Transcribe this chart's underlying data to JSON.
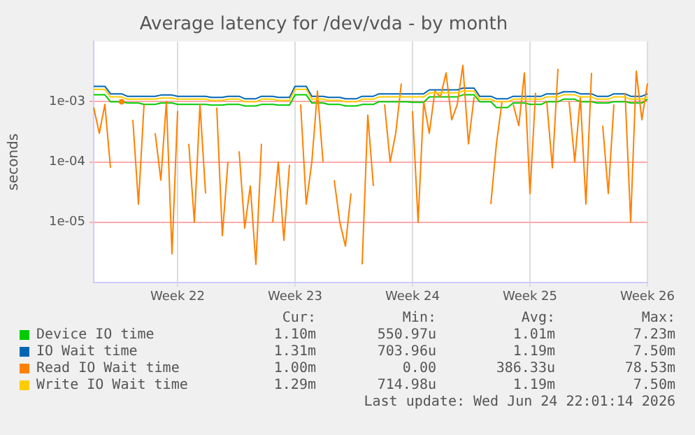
{
  "chart_data": {
    "type": "line",
    "title": "Average latency for /dev/vda - by month",
    "ylabel": "seconds",
    "log": "y",
    "grid": true,
    "legend": "bottom",
    "marker": "none",
    "line_style": "solid",
    "categories": [
      null,
      null,
      null,
      null,
      null,
      null,
      null,
      null,
      null,
      null,
      null,
      null,
      null,
      null,
      null,
      "Week 22",
      null,
      null,
      null,
      null,
      null,
      null,
      null,
      null,
      null,
      null,
      null,
      null,
      null,
      null,
      null,
      null,
      null,
      null,
      null,
      null,
      "Week 23",
      null,
      null,
      null,
      null,
      null,
      null,
      null,
      null,
      null,
      null,
      null,
      null,
      null,
      null,
      null,
      null,
      null,
      null,
      null,
      null,
      "Week 24",
      null,
      null,
      null,
      null,
      null,
      null,
      null,
      null,
      null,
      null,
      null,
      null,
      null,
      null,
      null,
      null,
      null,
      null,
      null,
      null,
      "Week 25",
      null,
      null,
      null,
      null,
      null,
      null,
      null,
      null,
      null,
      null,
      null,
      null,
      null,
      null,
      null,
      null,
      null,
      null,
      null,
      null,
      "Week 26"
    ],
    "ylim": [
      1e-06,
      0.01
    ],
    "yticks": [
      {
        "value": 1e-05,
        "label": "1e-05"
      },
      {
        "value": 0.0001,
        "label": "1e-04"
      },
      {
        "value": 0.001,
        "label": "1e-03"
      }
    ],
    "series": [
      {
        "name": "Device IO time",
        "color": "#00cc00",
        "values": [
          0.0013,
          0.0013,
          0.0013,
          0.001,
          0.001,
          0.001,
          0.00095,
          0.00095,
          0.00095,
          0.0009,
          0.0009,
          0.0009,
          0.00095,
          0.00095,
          0.00095,
          0.0009,
          0.0009,
          0.0009,
          0.0009,
          0.0009,
          0.0009,
          0.00088,
          0.00088,
          0.00088,
          0.0009,
          0.0009,
          0.0009,
          0.00085,
          0.00085,
          0.00085,
          0.0009,
          0.0009,
          0.0009,
          0.00088,
          0.00088,
          0.00088,
          0.0013,
          0.0013,
          0.0013,
          0.00095,
          0.00095,
          0.00095,
          0.0009,
          0.0009,
          0.0009,
          0.00085,
          0.00085,
          0.00085,
          0.0009,
          0.0009,
          0.0009,
          0.001,
          0.001,
          0.001,
          0.001,
          0.001,
          0.001,
          0.00098,
          0.00098,
          0.00098,
          0.0012,
          0.0012,
          0.0012,
          0.0012,
          0.0012,
          0.0012,
          0.0013,
          0.0013,
          0.0013,
          0.001,
          0.001,
          0.001,
          0.0008,
          0.0008,
          0.0008,
          0.00095,
          0.00095,
          0.00095,
          0.0009,
          0.0009,
          0.0009,
          0.001,
          0.001,
          0.001,
          0.0011,
          0.0011,
          0.0011,
          0.001,
          0.001,
          0.001,
          0.00095,
          0.00095,
          0.00095,
          0.001,
          0.001,
          0.001,
          0.00095,
          0.00095,
          0.00095,
          0.0011
        ]
      },
      {
        "name": "IO Wait time",
        "color": "#0066b3",
        "values": [
          0.0018,
          0.0018,
          0.0018,
          0.00135,
          0.00135,
          0.00135,
          0.00123,
          0.00123,
          0.00123,
          0.00123,
          0.00123,
          0.00123,
          0.00129,
          0.00129,
          0.00129,
          0.00123,
          0.00123,
          0.00123,
          0.00123,
          0.00123,
          0.00123,
          0.00118,
          0.00118,
          0.00118,
          0.00123,
          0.00123,
          0.00123,
          0.00112,
          0.00112,
          0.00112,
          0.00123,
          0.00123,
          0.00123,
          0.00118,
          0.00118,
          0.00118,
          0.0018,
          0.0018,
          0.0018,
          0.00123,
          0.00123,
          0.00123,
          0.00118,
          0.00118,
          0.00118,
          0.00112,
          0.00112,
          0.00112,
          0.00123,
          0.00123,
          0.00123,
          0.00135,
          0.00135,
          0.00135,
          0.00135,
          0.00135,
          0.00135,
          0.00135,
          0.00135,
          0.00135,
          0.00157,
          0.00157,
          0.00157,
          0.00157,
          0.00157,
          0.00157,
          0.00168,
          0.00168,
          0.00168,
          0.00123,
          0.00123,
          0.00123,
          0.00112,
          0.00112,
          0.00112,
          0.00123,
          0.00123,
          0.00123,
          0.00123,
          0.00123,
          0.00123,
          0.00135,
          0.00135,
          0.00135,
          0.00146,
          0.00146,
          0.00146,
          0.00135,
          0.00135,
          0.00135,
          0.00123,
          0.00123,
          0.00123,
          0.00135,
          0.00135,
          0.00135,
          0.00123,
          0.00123,
          0.00123,
          0.00135
        ]
      },
      {
        "name": "Read IO Wait time",
        "color": "#ff8000",
        "values": [
          0.0008,
          0.0003,
          0.0009,
          8e-05,
          null,
          0.001,
          null,
          0.0005,
          2e-05,
          0.0009,
          null,
          0.0003,
          5e-05,
          0.001,
          3e-06,
          0.0007,
          null,
          0.0002,
          1e-05,
          0.0009,
          3e-05,
          null,
          0.0008,
          6e-06,
          0.0001,
          null,
          0.00015,
          8e-06,
          4e-05,
          2e-06,
          0.0002,
          null,
          1e-05,
          0.0001,
          5e-06,
          9e-05,
          null,
          0.0009,
          2e-05,
          0.0001,
          0.0015,
          0.0001,
          null,
          5e-05,
          1e-05,
          4e-06,
          3e-05,
          null,
          2e-06,
          0.0006,
          4e-05,
          null,
          0.0009,
          0.0001,
          0.0003,
          0.002,
          null,
          0.0007,
          1e-05,
          0.001,
          0.0003,
          0.0015,
          0.0012,
          0.003,
          0.0005,
          0.0009,
          0.004,
          0.0002,
          0.0012,
          null,
          null,
          2e-05,
          0.0002,
          0.001,
          null,
          0.0009,
          0.0004,
          0.003,
          3e-05,
          0.0014,
          null,
          0.001,
          8e-05,
          0.0035,
          null,
          0.001,
          0.0001,
          0.0012,
          2e-05,
          0.003,
          null,
          0.0004,
          3e-05,
          0.0009,
          null,
          0.0014,
          1e-05,
          0.0032,
          0.0005,
          0.002
        ]
      },
      {
        "name": "Write IO Wait time",
        "color": "#ffcc00",
        "values": [
          0.0016,
          0.0016,
          0.0016,
          0.0012,
          0.0012,
          0.0012,
          0.0011,
          0.0011,
          0.0011,
          0.0011,
          0.0011,
          0.0011,
          0.00115,
          0.00115,
          0.00115,
          0.0011,
          0.0011,
          0.0011,
          0.0011,
          0.0011,
          0.0011,
          0.00105,
          0.00105,
          0.00105,
          0.0011,
          0.0011,
          0.0011,
          0.001,
          0.001,
          0.001,
          0.0011,
          0.0011,
          0.0011,
          0.00105,
          0.00105,
          0.00105,
          0.0016,
          0.0016,
          0.0016,
          0.0011,
          0.0011,
          0.0011,
          0.00105,
          0.00105,
          0.00105,
          0.001,
          0.001,
          0.001,
          0.0011,
          0.0011,
          0.0011,
          0.0012,
          0.0012,
          0.0012,
          0.0012,
          0.0012,
          0.0012,
          0.0012,
          0.0012,
          0.0012,
          0.0014,
          0.0014,
          0.0014,
          0.0014,
          0.0014,
          0.0014,
          0.0015,
          0.0015,
          0.0015,
          0.0011,
          0.0011,
          0.0011,
          0.001,
          0.001,
          0.001,
          0.0011,
          0.0011,
          0.0011,
          0.0011,
          0.0011,
          0.0011,
          0.0012,
          0.0012,
          0.0012,
          0.0013,
          0.0013,
          0.0013,
          0.0012,
          0.0012,
          0.0012,
          0.0011,
          0.0011,
          0.0011,
          0.0012,
          0.0012,
          0.0012,
          0.0011,
          0.0011,
          0.0011,
          0.0012
        ]
      }
    ],
    "annotations": [
      "Cur:",
      "Min:",
      "Avg:",
      "Max:",
      "1.10m",
      "550.97u",
      "1.01m",
      "7.23m",
      "1.31m",
      "703.96u",
      "1.19m",
      "7.50m",
      "1.00m",
      "0.00",
      "386.33u",
      "78.53m",
      "1.29m",
      "714.98u",
      "1.19m",
      "7.50m",
      "Last update: Wed Jun 24 22:01:14 2026"
    ]
  }
}
